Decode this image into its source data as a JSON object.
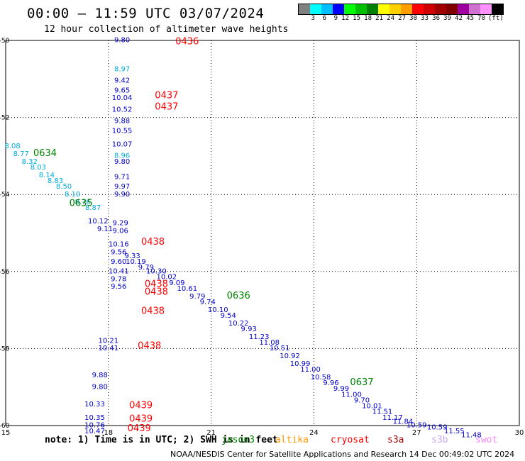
{
  "header": {
    "title": "00:00 – 11:59 UTC 03/07/2024",
    "subtitle": "12 hour collection of altimeter wave heights"
  },
  "legend": {
    "colors": [
      "#808080",
      "#00ffff",
      "#00bfff",
      "#0000ff",
      "#00ff00",
      "#00c000",
      "#008000",
      "#ffff00",
      "#ffd000",
      "#ffa000",
      "#ff0000",
      "#d00000",
      "#a00000",
      "#800000",
      "#a000a0",
      "#d070d0",
      "#ff90ff",
      "#000000"
    ],
    "labels": [
      "3",
      "6",
      "9",
      "12",
      "15",
      "18",
      "21",
      "24",
      "27",
      "30",
      "33",
      "36",
      "39",
      "42",
      "45",
      "70"
    ],
    "unit": "(ft)"
  },
  "note": "note: 1) Time is in UTC; 2) SWH is in feet",
  "missions": [
    {
      "name": "jason3",
      "color": "#008000"
    },
    {
      "name": "altika",
      "color": "#ff9900"
    },
    {
      "name": "cryosat",
      "color": "#ff0000"
    },
    {
      "name": "s3a",
      "color": "#a00000"
    },
    {
      "name": "s3b",
      "color": "#c8a8f0"
    },
    {
      "name": "swot",
      "color": "#ff88ff"
    }
  ],
  "footer": "NOAA/NESDIS Center for Satellite Applications and Research    14 Dec 00:49:02 UTC 2024",
  "chart_data": {
    "type": "scatter",
    "xlim": [
      15,
      30
    ],
    "ylim": [
      -60,
      -50
    ],
    "xticks": [
      "15",
      "18",
      "21",
      "24",
      "27",
      "30"
    ],
    "yticks": [
      "-50",
      "-52",
      "-54",
      "-56",
      "-58",
      "-60"
    ],
    "grid": true,
    "series": [
      {
        "name": "altimeter_wave_heights",
        "color": "#0000cc",
        "points": [
          {
            "x": 18.4,
            "y": -50.05,
            "label": "9.80"
          },
          {
            "x": 18.4,
            "y": -51.1,
            "label": "9.42"
          },
          {
            "x": 18.4,
            "y": -51.35,
            "label": "9.65"
          },
          {
            "x": 18.4,
            "y": -51.55,
            "label": "10.04"
          },
          {
            "x": 18.4,
            "y": -51.85,
            "label": "10.52"
          },
          {
            "x": 18.4,
            "y": -52.15,
            "label": "9.88"
          },
          {
            "x": 18.4,
            "y": -52.4,
            "label": "10.55"
          },
          {
            "x": 18.4,
            "y": -52.75,
            "label": "10.07"
          },
          {
            "x": 18.4,
            "y": -53.2,
            "label": "9.80"
          },
          {
            "x": 18.4,
            "y": -53.6,
            "label": "9.71"
          },
          {
            "x": 18.4,
            "y": -53.85,
            "label": "9.97"
          },
          {
            "x": 18.4,
            "y": -54.05,
            "label": "9.90"
          },
          {
            "x": 17.7,
            "y": -54.75,
            "label": "10.12"
          },
          {
            "x": 17.9,
            "y": -54.95,
            "label": "9.11"
          },
          {
            "x": 18.35,
            "y": -54.8,
            "label": "9.29"
          },
          {
            "x": 18.35,
            "y": -55.0,
            "label": "9.06"
          },
          {
            "x": 18.3,
            "y": -55.35,
            "label": "10.16"
          },
          {
            "x": 18.3,
            "y": -55.55,
            "label": "9.56"
          },
          {
            "x": 18.7,
            "y": -55.65,
            "label": "9.33"
          },
          {
            "x": 18.3,
            "y": -55.8,
            "label": "9.60"
          },
          {
            "x": 18.8,
            "y": -55.8,
            "label": "10.19"
          },
          {
            "x": 18.3,
            "y": -56.05,
            "label": "10.41"
          },
          {
            "x": 18.3,
            "y": -56.25,
            "label": "9.78"
          },
          {
            "x": 18.3,
            "y": -56.45,
            "label": "9.56"
          },
          {
            "x": 19.1,
            "y": -55.95,
            "label": "9.79"
          },
          {
            "x": 19.4,
            "y": -56.05,
            "label": "10.30"
          },
          {
            "x": 19.7,
            "y": -56.2,
            "label": "10.02"
          },
          {
            "x": 20.0,
            "y": -56.35,
            "label": "9.09"
          },
          {
            "x": 20.3,
            "y": -56.5,
            "label": "10.61"
          },
          {
            "x": 20.6,
            "y": -56.7,
            "label": "9.79"
          },
          {
            "x": 20.9,
            "y": -56.85,
            "label": "9.74"
          },
          {
            "x": 21.2,
            "y": -57.05,
            "label": "10.10"
          },
          {
            "x": 21.5,
            "y": -57.2,
            "label": "9.54"
          },
          {
            "x": 21.8,
            "y": -57.4,
            "label": "10.22"
          },
          {
            "x": 22.1,
            "y": -57.55,
            "label": "9.93"
          },
          {
            "x": 22.4,
            "y": -57.75,
            "label": "11.23"
          },
          {
            "x": 22.7,
            "y": -57.9,
            "label": "11.08"
          },
          {
            "x": 23.0,
            "y": -58.05,
            "label": "10.51"
          },
          {
            "x": 23.3,
            "y": -58.25,
            "label": "10.92"
          },
          {
            "x": 23.6,
            "y": -58.45,
            "label": "10.99"
          },
          {
            "x": 23.9,
            "y": -58.6,
            "label": "11.00"
          },
          {
            "x": 24.2,
            "y": -58.8,
            "label": "10.58"
          },
          {
            "x": 24.5,
            "y": -58.95,
            "label": "9.96"
          },
          {
            "x": 24.8,
            "y": -59.1,
            "label": "9.99"
          },
          {
            "x": 25.1,
            "y": -59.25,
            "label": "11.00"
          },
          {
            "x": 25.4,
            "y": -59.4,
            "label": "9.70"
          },
          {
            "x": 25.7,
            "y": -59.55,
            "label": "10.01"
          },
          {
            "x": 26.0,
            "y": -59.7,
            "label": "11.51"
          },
          {
            "x": 26.3,
            "y": -59.85,
            "label": "11.17"
          },
          {
            "x": 26.6,
            "y": -59.95,
            "label": "11.84"
          },
          {
            "x": 27.0,
            "y": -60.05,
            "label": "10.59"
          },
          {
            "x": 27.6,
            "y": -60.1,
            "label": "10.59"
          },
          {
            "x": 28.1,
            "y": -60.2,
            "label": "11.55"
          },
          {
            "x": 28.6,
            "y": -60.3,
            "label": "11.48"
          },
          {
            "x": 18.0,
            "y": -57.85,
            "label": "10.21"
          },
          {
            "x": 18.0,
            "y": -58.05,
            "label": "10.41"
          },
          {
            "x": 17.75,
            "y": -58.75,
            "label": "9.88"
          },
          {
            "x": 17.75,
            "y": -59.05,
            "label": "9.80"
          },
          {
            "x": 17.6,
            "y": -59.5,
            "label": "10.33"
          },
          {
            "x": 17.6,
            "y": -59.85,
            "label": "10.35"
          },
          {
            "x": 17.6,
            "y": -60.05,
            "label": "10.76"
          },
          {
            "x": 17.6,
            "y": -60.2,
            "label": "10.47"
          }
        ]
      },
      {
        "name": "cyan_values",
        "color": "#00aadd",
        "points": [
          {
            "x": 15.2,
            "y": -52.8,
            "label": "8.08"
          },
          {
            "x": 15.45,
            "y": -53.0,
            "label": "8.77"
          },
          {
            "x": 15.7,
            "y": -53.2,
            "label": "8.32"
          },
          {
            "x": 15.95,
            "y": -53.35,
            "label": "8.03"
          },
          {
            "x": 16.2,
            "y": -53.55,
            "label": "8.14"
          },
          {
            "x": 16.45,
            "y": -53.7,
            "label": "8.83"
          },
          {
            "x": 16.7,
            "y": -53.85,
            "label": "8.50"
          },
          {
            "x": 16.95,
            "y": -54.05,
            "label": "8.10"
          },
          {
            "x": 17.25,
            "y": -54.25,
            "label": "8.76"
          },
          {
            "x": 17.55,
            "y": -54.4,
            "label": "8.87"
          },
          {
            "x": 18.4,
            "y": -50.8,
            "label": "8.97"
          },
          {
            "x": 18.4,
            "y": -53.05,
            "label": "8.96"
          }
        ]
      },
      {
        "name": "red_labels",
        "color": "#ff0000",
        "points": [
          {
            "x": 20.3,
            "y": -50.1,
            "label": "0436"
          },
          {
            "x": 19.7,
            "y": -51.5,
            "label": "0437"
          },
          {
            "x": 19.7,
            "y": -51.8,
            "label": "0437"
          },
          {
            "x": 19.3,
            "y": -55.3,
            "label": "0438"
          },
          {
            "x": 19.4,
            "y": -56.4,
            "label": "0438"
          },
          {
            "x": 19.4,
            "y": -56.6,
            "label": "0438"
          },
          {
            "x": 19.3,
            "y": -57.1,
            "label": "0438"
          },
          {
            "x": 19.2,
            "y": -58.0,
            "label": "0438"
          },
          {
            "x": 18.95,
            "y": -59.55,
            "label": "0439"
          },
          {
            "x": 18.95,
            "y": -59.9,
            "label": "0439"
          },
          {
            "x": 18.9,
            "y": -60.15,
            "label": "0439"
          }
        ]
      },
      {
        "name": "green_labels",
        "color": "#008000",
        "points": [
          {
            "x": 16.15,
            "y": -53.0,
            "label": "0634"
          },
          {
            "x": 17.2,
            "y": -54.3,
            "label": "0635"
          },
          {
            "x": 21.8,
            "y": -56.7,
            "label": "0636"
          },
          {
            "x": 25.4,
            "y": -58.95,
            "label": "0637"
          }
        ]
      }
    ]
  }
}
